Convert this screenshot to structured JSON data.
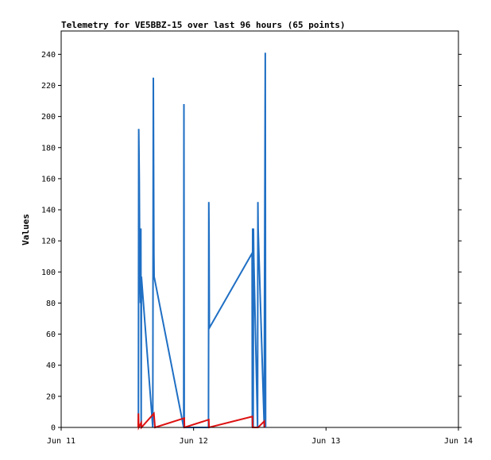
{
  "chart_data": {
    "type": "line",
    "title": "Telemetry for VE5BBZ-15 over last 96 hours (65 points)",
    "xlabel": "",
    "ylabel": "Values",
    "x_ticks": [
      "Jun 11",
      "Jun 12",
      "Jun 13",
      "Jun 14"
    ],
    "x_range_hours": [
      0,
      72
    ],
    "ylim": [
      0,
      255
    ],
    "y_ticks": [
      0,
      20,
      40,
      60,
      80,
      100,
      120,
      140,
      160,
      180,
      200,
      220,
      240
    ],
    "grid": false,
    "legend": "none",
    "series": [
      {
        "color": "#1f6fc4",
        "points": [
          [
            14.0,
            0
          ],
          [
            14.05,
            192
          ],
          [
            14.1,
            180
          ],
          [
            14.15,
            160
          ],
          [
            14.25,
            95
          ],
          [
            14.35,
            80
          ],
          [
            14.45,
            128
          ],
          [
            14.5,
            0
          ],
          [
            14.55,
            97
          ],
          [
            16.6,
            0
          ],
          [
            16.7,
            225
          ],
          [
            16.8,
            112
          ],
          [
            16.85,
            97
          ],
          [
            22.2,
            0
          ],
          [
            22.25,
            208
          ],
          [
            22.3,
            0
          ],
          [
            26.7,
            0
          ],
          [
            26.75,
            145
          ],
          [
            26.8,
            125
          ],
          [
            26.85,
            64
          ],
          [
            34.6,
            112
          ],
          [
            34.65,
            0
          ],
          [
            34.7,
            128
          ],
          [
            34.8,
            0
          ],
          [
            34.85,
            128
          ],
          [
            34.9,
            110
          ],
          [
            35.6,
            0
          ],
          [
            35.65,
            145
          ],
          [
            35.7,
            128
          ],
          [
            36.8,
            0
          ],
          [
            36.85,
            80
          ],
          [
            37.0,
            241
          ],
          [
            37.05,
            0
          ]
        ]
      },
      {
        "color": "#dd1111",
        "points": [
          [
            13.95,
            0
          ],
          [
            14.0,
            9
          ],
          [
            14.05,
            0
          ],
          [
            14.5,
            3
          ],
          [
            14.55,
            0
          ],
          [
            16.8,
            9
          ],
          [
            17.0,
            0
          ],
          [
            22.3,
            6
          ],
          [
            22.35,
            0
          ],
          [
            26.75,
            5
          ],
          [
            26.8,
            0
          ],
          [
            34.65,
            7
          ],
          [
            34.7,
            0
          ],
          [
            35.7,
            0
          ],
          [
            36.8,
            4
          ],
          [
            36.85,
            0
          ]
        ]
      },
      {
        "color": "#000000",
        "points": [
          [
            14.0,
            0
          ],
          [
            37.05,
            0
          ]
        ]
      }
    ]
  }
}
